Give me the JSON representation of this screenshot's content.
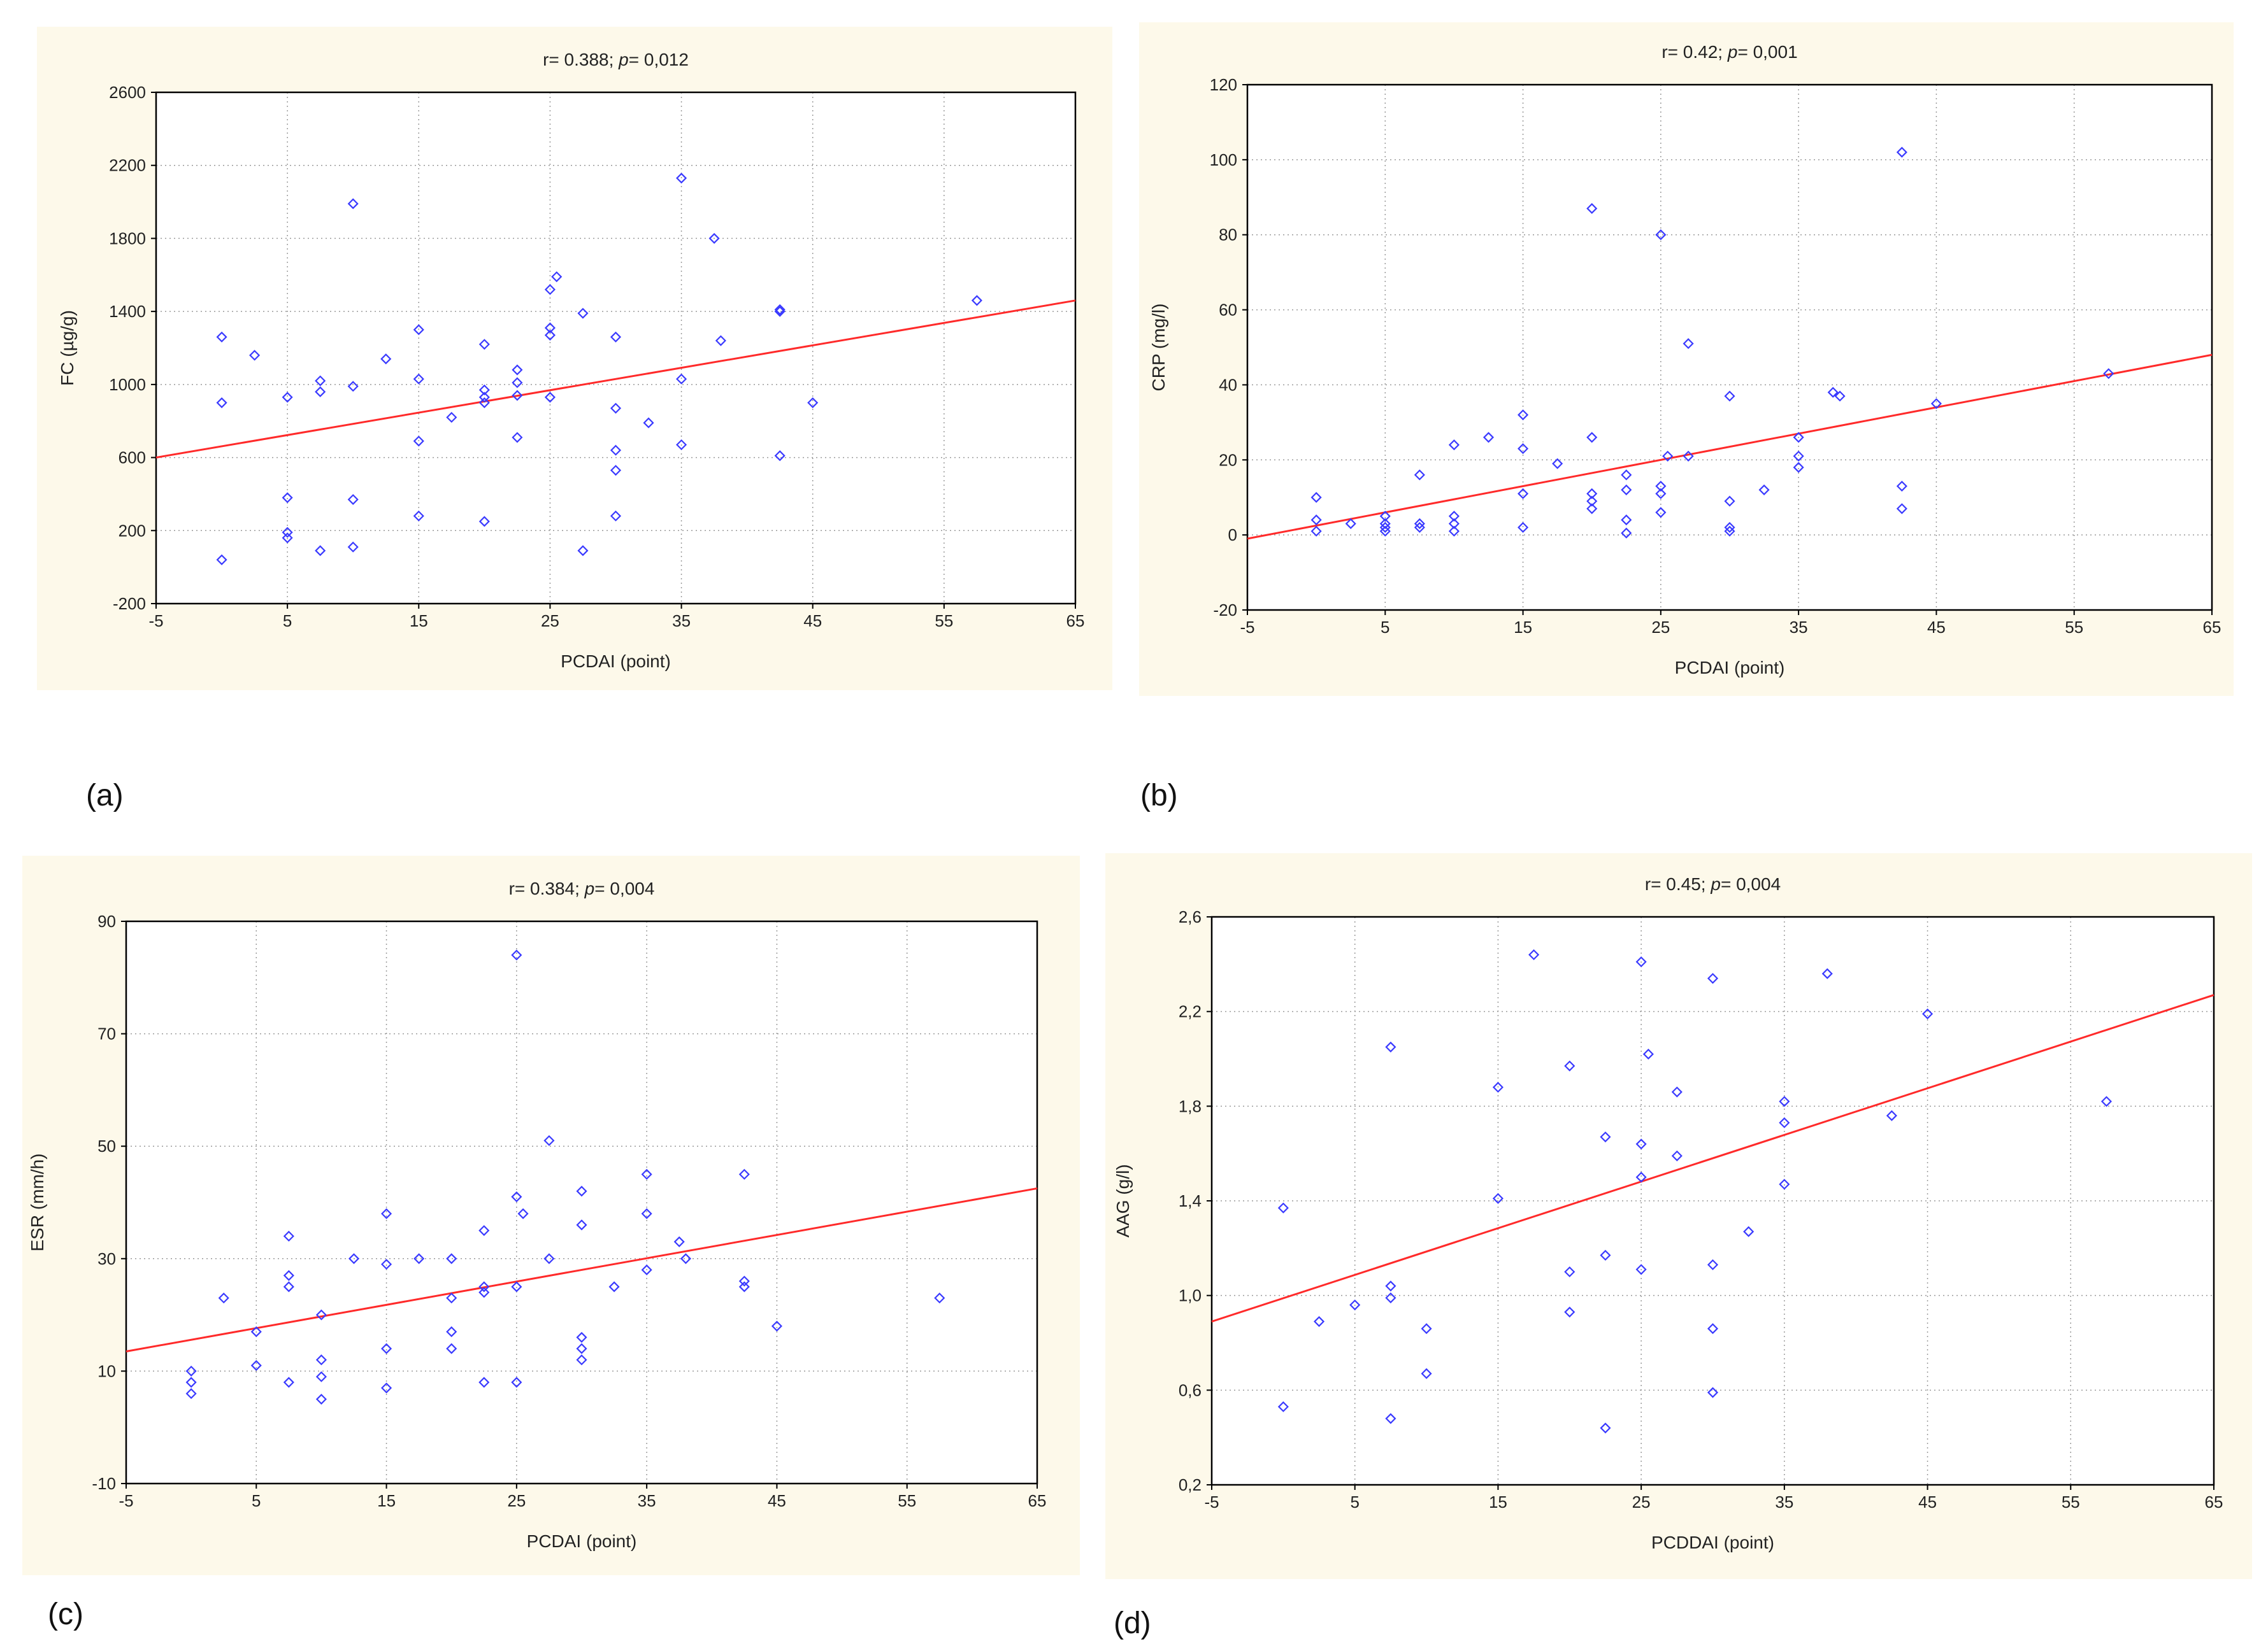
{
  "panels": [
    {
      "label": "(a)"
    },
    {
      "label": "(b)"
    },
    {
      "label": "(c)"
    },
    {
      "label": "(d)"
    }
  ],
  "colors": {
    "points": "#3a3aff",
    "fit_line": "#ff2a2a",
    "panel_bg": "#fdf9ea",
    "grid": "#9a9a9a"
  },
  "chart_data": [
    {
      "type": "scatter",
      "title": "r= 0.388; p= 0,012",
      "title_prefix": "r= 0.388; ",
      "title_p": "p",
      "title_suffix": "= 0,012",
      "xlabel": "PCDAI (point)",
      "ylabel": "FC (µg/g)",
      "xlim": [
        -5,
        65
      ],
      "ylim": [
        -200,
        2600
      ],
      "xticks": [
        -5,
        5,
        15,
        25,
        35,
        45,
        55,
        65
      ],
      "yticks": [
        -200,
        200,
        600,
        1000,
        1400,
        1800,
        2200,
        2600
      ],
      "xtick_labels": [
        "-5",
        "5",
        "15",
        "25",
        "35",
        "45",
        "55",
        "65"
      ],
      "ytick_labels": [
        "-200",
        "200",
        "600",
        "1000",
        "1400",
        "1800",
        "2200",
        "2600"
      ],
      "fit": [
        [
          -5,
          600
        ],
        [
          65,
          1460
        ]
      ],
      "points": [
        [
          0,
          1260
        ],
        [
          0,
          900
        ],
        [
          0,
          40
        ],
        [
          2.5,
          1160
        ],
        [
          5,
          930
        ],
        [
          5,
          380
        ],
        [
          5,
          190
        ],
        [
          5,
          160
        ],
        [
          7.5,
          1020
        ],
        [
          7.5,
          960
        ],
        [
          7.5,
          90
        ],
        [
          10,
          1990
        ],
        [
          10,
          990
        ],
        [
          10,
          370
        ],
        [
          10,
          110
        ],
        [
          12.5,
          1140
        ],
        [
          15,
          1300
        ],
        [
          15,
          1030
        ],
        [
          15,
          690
        ],
        [
          15,
          280
        ],
        [
          17.5,
          820
        ],
        [
          20,
          1220
        ],
        [
          20,
          970
        ],
        [
          20,
          930
        ],
        [
          20,
          900
        ],
        [
          20,
          250
        ],
        [
          22.5,
          1080
        ],
        [
          22.5,
          1010
        ],
        [
          22.5,
          940
        ],
        [
          22.5,
          710
        ],
        [
          25,
          1520
        ],
        [
          25,
          1310
        ],
        [
          25,
          1270
        ],
        [
          25,
          930
        ],
        [
          25.5,
          1590
        ],
        [
          27.5,
          1390
        ],
        [
          27.5,
          90
        ],
        [
          30,
          1260
        ],
        [
          30,
          870
        ],
        [
          30,
          640
        ],
        [
          30,
          530
        ],
        [
          30,
          280
        ],
        [
          32.5,
          790
        ],
        [
          35,
          2130
        ],
        [
          35,
          1030
        ],
        [
          35,
          670
        ],
        [
          37.5,
          1800
        ],
        [
          38,
          1240
        ],
        [
          42.5,
          1410
        ],
        [
          42.5,
          1400
        ],
        [
          42.5,
          610
        ],
        [
          45,
          900
        ],
        [
          57.5,
          1460
        ]
      ]
    },
    {
      "type": "scatter",
      "title": "r= 0.42; p= 0,001",
      "title_prefix": "r= 0.42; ",
      "title_p": "p",
      "title_suffix": "= 0,001",
      "xlabel": "PCDAI (point)",
      "ylabel": "CRP (mg/l)",
      "xlim": [
        -5,
        65
      ],
      "ylim": [
        -20,
        120
      ],
      "xticks": [
        -5,
        5,
        15,
        25,
        35,
        45,
        55,
        65
      ],
      "yticks": [
        -20,
        0,
        20,
        40,
        60,
        80,
        100,
        120
      ],
      "xtick_labels": [
        "-5",
        "5",
        "15",
        "25",
        "35",
        "45",
        "55",
        "65"
      ],
      "ytick_labels": [
        "-20",
        "0",
        "20",
        "40",
        "60",
        "80",
        "100",
        "120"
      ],
      "fit": [
        [
          -5,
          -1
        ],
        [
          65,
          48
        ]
      ],
      "points": [
        [
          0,
          10
        ],
        [
          0,
          4
        ],
        [
          0,
          1
        ],
        [
          2.5,
          3
        ],
        [
          5,
          5
        ],
        [
          5,
          3
        ],
        [
          5,
          2
        ],
        [
          5,
          1
        ],
        [
          7.5,
          16
        ],
        [
          7.5,
          3
        ],
        [
          7.5,
          2
        ],
        [
          10,
          24
        ],
        [
          10,
          5
        ],
        [
          10,
          3
        ],
        [
          10,
          1
        ],
        [
          12.5,
          26
        ],
        [
          15,
          32
        ],
        [
          15,
          23
        ],
        [
          15,
          11
        ],
        [
          15,
          2
        ],
        [
          17.5,
          19
        ],
        [
          20,
          87
        ],
        [
          20,
          26
        ],
        [
          20,
          11
        ],
        [
          20,
          9
        ],
        [
          20,
          7
        ],
        [
          22.5,
          16
        ],
        [
          22.5,
          12
        ],
        [
          22.5,
          4
        ],
        [
          22.5,
          0.5
        ],
        [
          25,
          80
        ],
        [
          25,
          13
        ],
        [
          25,
          11
        ],
        [
          25,
          6
        ],
        [
          25.5,
          21
        ],
        [
          27,
          51
        ],
        [
          27,
          21
        ],
        [
          30,
          37
        ],
        [
          30,
          9
        ],
        [
          30,
          2
        ],
        [
          30,
          1
        ],
        [
          32.5,
          12
        ],
        [
          35,
          26
        ],
        [
          35,
          21
        ],
        [
          35,
          18
        ],
        [
          37.5,
          38
        ],
        [
          38,
          37
        ],
        [
          42.5,
          102
        ],
        [
          42.5,
          13
        ],
        [
          42.5,
          7
        ],
        [
          45,
          35
        ],
        [
          57.5,
          43
        ]
      ]
    },
    {
      "type": "scatter",
      "title": "r= 0.384; p= 0,004",
      "title_prefix": "r= 0.384; ",
      "title_p": "p",
      "title_suffix": "= 0,004",
      "xlabel": "PCDAI (point)",
      "ylabel": "ESR (mm/h)",
      "xlim": [
        -5,
        65
      ],
      "ylim": [
        -10,
        90
      ],
      "xticks": [
        -5,
        5,
        15,
        25,
        35,
        45,
        55,
        65
      ],
      "yticks": [
        -10,
        10,
        30,
        50,
        70,
        90
      ],
      "xtick_labels": [
        "-5",
        "5",
        "15",
        "25",
        "35",
        "45",
        "55",
        "65"
      ],
      "ytick_labels": [
        "-10",
        "10",
        "30",
        "50",
        "70",
        "90"
      ],
      "fit": [
        [
          -5,
          13.5
        ],
        [
          65,
          42.5
        ]
      ],
      "points": [
        [
          0,
          10
        ],
        [
          0,
          8
        ],
        [
          0,
          6
        ],
        [
          2.5,
          23
        ],
        [
          5,
          17
        ],
        [
          5,
          11
        ],
        [
          7.5,
          34
        ],
        [
          7.5,
          27
        ],
        [
          7.5,
          25
        ],
        [
          7.5,
          8
        ],
        [
          10,
          20
        ],
        [
          10,
          12
        ],
        [
          10,
          9
        ],
        [
          10,
          5
        ],
        [
          12.5,
          30
        ],
        [
          15,
          38
        ],
        [
          15,
          29
        ],
        [
          15,
          14
        ],
        [
          15,
          7
        ],
        [
          17.5,
          30
        ],
        [
          20,
          30
        ],
        [
          20,
          23
        ],
        [
          20,
          17
        ],
        [
          20,
          14
        ],
        [
          22.5,
          35
        ],
        [
          22.5,
          25
        ],
        [
          22.5,
          24
        ],
        [
          22.5,
          8
        ],
        [
          25,
          84
        ],
        [
          25,
          41
        ],
        [
          25,
          25
        ],
        [
          25,
          8
        ],
        [
          25.5,
          38
        ],
        [
          27.5,
          51
        ],
        [
          27.5,
          30
        ],
        [
          30,
          42
        ],
        [
          30,
          36
        ],
        [
          30,
          16
        ],
        [
          30,
          14
        ],
        [
          30,
          12
        ],
        [
          32.5,
          25
        ],
        [
          35,
          45
        ],
        [
          35,
          38
        ],
        [
          35,
          28
        ],
        [
          37.5,
          33
        ],
        [
          38,
          30
        ],
        [
          42.5,
          45
        ],
        [
          42.5,
          26
        ],
        [
          42.5,
          25
        ],
        [
          45,
          18
        ],
        [
          57.5,
          23
        ]
      ]
    },
    {
      "type": "scatter",
      "title": "r= 0.45; p= 0,004",
      "title_prefix": "r= 0.45; ",
      "title_p": "p",
      "title_suffix": "= 0,004",
      "xlabel": "PCDDAI (point)",
      "ylabel": "AAG (g/l)",
      "xlim": [
        -5,
        65
      ],
      "ylim": [
        0.2,
        2.6
      ],
      "xticks": [
        -5,
        5,
        15,
        25,
        35,
        45,
        55,
        65
      ],
      "yticks": [
        0.2,
        0.6,
        1.0,
        1.4,
        1.8,
        2.2,
        2.6
      ],
      "xtick_labels": [
        "-5",
        "5",
        "15",
        "25",
        "35",
        "45",
        "55",
        "65"
      ],
      "ytick_labels": [
        "0,2",
        "0,6",
        "1,0",
        "1,4",
        "1,8",
        "2,2",
        "2,6"
      ],
      "fit": [
        [
          -5,
          0.89
        ],
        [
          65,
          2.27
        ]
      ],
      "points": [
        [
          0,
          1.37
        ],
        [
          0,
          0.53
        ],
        [
          2.5,
          0.89
        ],
        [
          5,
          0.96
        ],
        [
          7.5,
          2.05
        ],
        [
          7.5,
          1.04
        ],
        [
          7.5,
          0.99
        ],
        [
          7.5,
          0.48
        ],
        [
          10,
          0.86
        ],
        [
          10,
          0.67
        ],
        [
          15,
          1.88
        ],
        [
          15,
          1.41
        ],
        [
          17.5,
          2.44
        ],
        [
          20,
          1.97
        ],
        [
          20,
          1.1
        ],
        [
          20,
          0.93
        ],
        [
          22.5,
          1.67
        ],
        [
          22.5,
          1.17
        ],
        [
          22.5,
          0.44
        ],
        [
          25,
          2.41
        ],
        [
          25,
          1.64
        ],
        [
          25,
          1.5
        ],
        [
          25,
          1.11
        ],
        [
          25.5,
          2.02
        ],
        [
          27.5,
          1.86
        ],
        [
          27.5,
          1.59
        ],
        [
          30,
          2.34
        ],
        [
          30,
          1.13
        ],
        [
          30,
          0.86
        ],
        [
          30,
          0.59
        ],
        [
          32.5,
          1.27
        ],
        [
          35,
          1.82
        ],
        [
          35,
          1.73
        ],
        [
          35,
          1.47
        ],
        [
          38,
          2.36
        ],
        [
          42.5,
          1.76
        ],
        [
          45,
          2.19
        ],
        [
          57.5,
          1.82
        ]
      ]
    }
  ]
}
